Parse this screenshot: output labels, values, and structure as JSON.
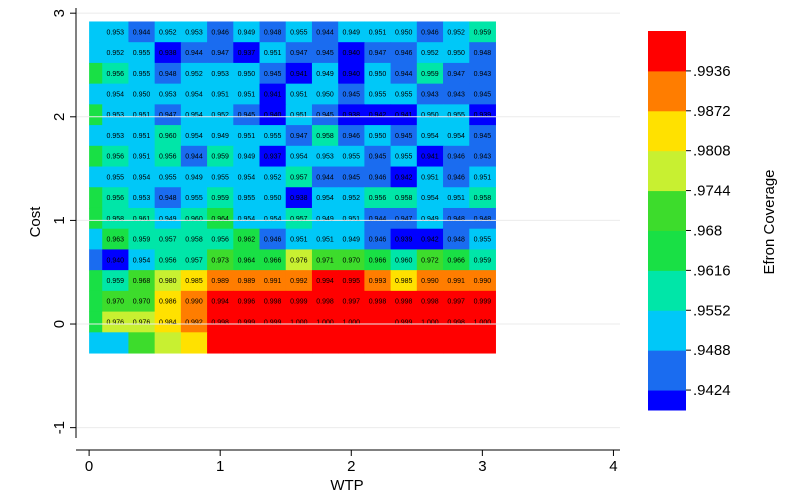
{
  "chart_data": {
    "type": "heatmap",
    "title": "",
    "xlabel": "WTP",
    "ylabel": "Cost",
    "xlim": [
      -0.1,
      4.05
    ],
    "ylim": [
      -1.1,
      3.05
    ],
    "x_ticks": [
      0,
      1,
      2,
      3,
      4
    ],
    "x_tick_labels": [
      "0",
      "1",
      "2",
      "3",
      "4"
    ],
    "y_ticks": [
      -1,
      0,
      1,
      2,
      3
    ],
    "y_tick_labels": [
      "-1",
      "0",
      "1",
      "2",
      "3"
    ],
    "cell_size": 0.2,
    "x_start": 0.0,
    "y_top": 2.92,
    "left_strip_width": 0.1,
    "grid": true,
    "rows": [
      {
        "values": [
          0.953,
          0.944,
          0.952,
          0.953,
          0.946,
          0.949,
          0.948,
          0.955,
          0.944,
          0.949,
          0.951,
          0.95,
          0.946,
          0.952,
          0.959
        ],
        "labels": [
          "0.953",
          "0.944",
          "0.952",
          "0.953",
          "0.946",
          "0.949",
          "0.948",
          "0.955",
          "0.944",
          "0.949",
          "0.951",
          "0.950",
          "0.946",
          "0.952",
          "0.959"
        ],
        "strip": 0.955
      },
      {
        "values": [
          0.952,
          0.955,
          0.938,
          0.944,
          0.947,
          0.937,
          0.951,
          0.947,
          0.945,
          0.94,
          0.947,
          0.946,
          0.952,
          0.95,
          0.948
        ],
        "labels": [
          "0.952",
          "0.955",
          "0.938",
          "0.944",
          "0.947",
          "0.937",
          "0.951",
          "0.947",
          "0.945",
          "0.940",
          "0.947",
          "0.946",
          "0.952",
          "0.950",
          "0.948"
        ],
        "strip": 0.955
      },
      {
        "values": [
          0.956,
          0.955,
          0.948,
          0.952,
          0.953,
          0.95,
          0.945,
          0.941,
          0.949,
          0.94,
          0.95,
          0.944,
          0.959,
          0.947,
          0.943
        ],
        "labels": [
          "0.956",
          "0.955",
          "0.948",
          "0.952",
          "0.953",
          "0.950",
          "0.945",
          "0.941",
          "0.949",
          "0.940",
          "0.950",
          "0.944",
          "0.959",
          "0.947",
          "0.943"
        ],
        "strip": 0.965
      },
      {
        "values": [
          0.954,
          0.95,
          0.953,
          0.954,
          0.951,
          0.951,
          0.941,
          0.951,
          0.95,
          0.945,
          0.955,
          0.955,
          0.943,
          0.943,
          0.945
        ],
        "labels": [
          "0.954",
          "0.950",
          "0.953",
          "0.954",
          "0.951",
          "0.951",
          "0.941",
          "0.951",
          "0.950",
          "0.945",
          "0.955",
          "0.955",
          "0.943",
          "0.943",
          "0.945"
        ],
        "strip": 0.955
      },
      {
        "values": [
          0.953,
          0.951,
          0.947,
          0.954,
          0.952,
          0.945,
          0.94,
          0.951,
          0.945,
          0.938,
          0.942,
          0.941,
          0.95,
          0.955,
          0.939
        ],
        "labels": [
          "0.953",
          "0.951",
          "0.947",
          "0.954",
          "0.952",
          "0.945",
          "0.940",
          "0.951",
          "0.945",
          "0.938",
          "0.942",
          "0.941",
          "0.950",
          "0.955",
          "0.939"
        ],
        "strip": 0.965
      },
      {
        "values": [
          0.953,
          0.951,
          0.96,
          0.954,
          0.949,
          0.951,
          0.955,
          0.947,
          0.958,
          0.946,
          0.95,
          0.945,
          0.954,
          0.954,
          0.945
        ],
        "labels": [
          "0.953",
          "0.951",
          "0.960",
          "0.954",
          "0.949",
          "0.951",
          "0.955",
          "0.947",
          "0.958",
          "0.946",
          "0.950",
          "0.945",
          "0.954",
          "0.954",
          "0.945"
        ],
        "strip": 0.955
      },
      {
        "values": [
          0.956,
          0.951,
          0.956,
          0.944,
          0.959,
          0.949,
          0.937,
          0.954,
          0.953,
          0.955,
          0.945,
          0.955,
          0.941,
          0.946,
          0.943
        ],
        "labels": [
          "0.956",
          "0.951",
          "0.956",
          "0.944",
          "0.959",
          "0.949",
          "0.937",
          "0.954",
          "0.953",
          "0.955",
          "0.945",
          "0.955",
          "0.941",
          "0.946",
          "0.943"
        ],
        "strip": 0.965
      },
      {
        "values": [
          0.955,
          0.954,
          0.955,
          0.949,
          0.955,
          0.954,
          0.952,
          0.957,
          0.944,
          0.945,
          0.946,
          0.942,
          0.951,
          0.946,
          0.951
        ],
        "labels": [
          "0.955",
          "0.954",
          "0.955",
          "0.949",
          "0.955",
          "0.954",
          "0.952",
          "0.957",
          "0.944",
          "0.945",
          "0.946",
          "0.942",
          "0.951",
          "0.946",
          "0.951"
        ],
        "strip": 0.955
      },
      {
        "values": [
          0.956,
          0.953,
          0.948,
          0.955,
          0.959,
          0.955,
          0.95,
          0.938,
          0.954,
          0.952,
          0.956,
          0.958,
          0.954,
          0.951,
          0.958
        ],
        "labels": [
          "0.956",
          "0.953",
          "0.948",
          "0.955",
          "0.959",
          "0.955",
          "0.950",
          "0.938",
          "0.954",
          "0.952",
          "0.956",
          "0.958",
          "0.954",
          "0.951",
          "0.958"
        ],
        "strip": 0.965
      },
      {
        "values": [
          0.958,
          0.961,
          0.949,
          0.96,
          0.964,
          0.954,
          0.954,
          0.957,
          0.949,
          0.951,
          0.944,
          0.947,
          0.949,
          0.948,
          0.948
        ],
        "labels": [
          "0.958",
          "0.961",
          "0.949",
          "0.960",
          "0.964",
          "0.954",
          "0.954",
          "0.957",
          "0.949",
          "0.951",
          "0.944",
          "0.947",
          "0.949",
          "0.948",
          "0.948"
        ],
        "strip": 0.965
      },
      {
        "values": [
          0.963,
          0.959,
          0.957,
          0.958,
          0.956,
          0.962,
          0.946,
          0.951,
          0.951,
          0.949,
          0.946,
          0.939,
          0.942,
          0.948,
          0.955
        ],
        "labels": [
          "0.963",
          "0.959",
          "0.957",
          "0.958",
          "0.956",
          "0.962",
          "0.946",
          "0.951",
          "0.951",
          "0.949",
          "0.946",
          "0.939",
          "0.942",
          "0.948",
          "0.955"
        ],
        "strip": 0.955
      },
      {
        "values": [
          0.94,
          0.954,
          0.956,
          0.957,
          0.973,
          0.964,
          0.966,
          0.976,
          0.971,
          0.97,
          0.966,
          0.96,
          0.972,
          0.966,
          0.959
        ],
        "labels": [
          "0.940",
          "0.954",
          "0.956",
          "0.957",
          "0.973",
          "0.964",
          "0.966",
          "0.976",
          "0.971",
          "0.970",
          "0.966",
          "0.960",
          "0.972",
          "0.966",
          "0.959"
        ],
        "strip": 0.945
      },
      {
        "values": [
          0.959,
          0.968,
          0.98,
          0.985,
          0.989,
          0.989,
          0.991,
          0.992,
          0.994,
          0.995,
          0.993,
          0.985,
          0.99,
          0.991,
          0.99
        ],
        "labels": [
          "0.959",
          "0.968",
          "0.980",
          "0.985",
          "0.989",
          "0.989",
          "0.991",
          "0.992",
          "0.994",
          "0.995",
          "0.993",
          "0.985",
          "0.990",
          "0.991",
          "0.990"
        ],
        "strip": 0.965
      },
      {
        "values": [
          0.97,
          0.97,
          0.986,
          0.99,
          0.994,
          0.996,
          0.998,
          0.999,
          0.998,
          0.997,
          0.998,
          0.998,
          0.998,
          0.997,
          0.999
        ],
        "labels": [
          "0.970",
          "0.970",
          "0.986",
          "0.990",
          "0.994",
          "0.996",
          "0.998",
          "0.999",
          "0.998",
          "0.997",
          "0.998",
          "0.998",
          "0.998",
          "0.997",
          "0.999"
        ],
        "strip": 0.965
      },
      {
        "values": [
          0.976,
          0.976,
          0.984,
          0.992,
          0.998,
          0.999,
          0.999,
          1.0,
          1.0,
          1.0,
          1.0,
          0.999,
          1.0,
          0.998,
          1.0
        ],
        "labels": [
          "0.976",
          "0.976",
          "0.984",
          "0.992",
          "0.998",
          "0.999",
          "0.999",
          "1.000",
          "1.000",
          "1.000",
          "",
          "0.999",
          "1.000",
          "0.998",
          "1.000"
        ],
        "strip": 0.965
      },
      {
        "values": [
          0.955,
          0.97,
          0.978,
          0.985,
          0.999,
          0.999,
          0.999,
          0.999,
          0.999,
          0.999,
          0.999,
          0.999,
          0.999,
          0.999,
          0.999
        ],
        "labels": [
          "",
          "",
          "",
          "",
          "",
          "",
          "",
          "",
          "",
          "",
          "",
          "",
          "",
          "",
          ""
        ],
        "strip": 0.955
      }
    ],
    "legend": {
      "title": "Efron Coverage",
      "placement": "right",
      "boundaries": [
        0.9392,
        0.9424,
        0.9488,
        0.9552,
        0.9616,
        0.968,
        0.9744,
        0.9808,
        0.9872,
        0.9936,
        1.0
      ],
      "tick_values": [
        0.9424,
        0.9488,
        0.9552,
        0.9616,
        0.968,
        0.9744,
        0.9808,
        0.9872,
        0.9936
      ],
      "tick_labels": [
        ".9424",
        ".9488",
        ".9552",
        ".9616",
        ".968",
        ".9744",
        ".9808",
        ".9872",
        ".9936"
      ],
      "colors": [
        "#0000ff",
        "#1a6cf0",
        "#00c8f8",
        "#00e6a8",
        "#19e045",
        "#3ddc2c",
        "#c8f031",
        "#ffe100",
        "#ff7d00",
        "#ff0000"
      ]
    }
  }
}
